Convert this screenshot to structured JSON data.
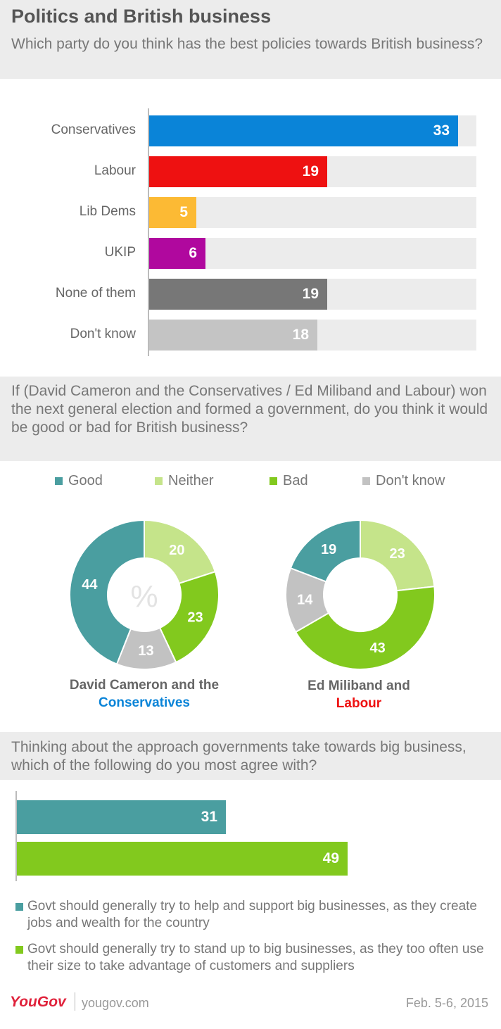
{
  "title": "Politics and British business",
  "q1": "Which party do you think has the best policies towards British business?",
  "q2": "If (David Cameron and the Conservatives / Ed Miliband and Labour) won the next general election and formed a government, do you think it would be good or bad for British business?",
  "q3": "Thinking about the approach governments take towards big business, which of the following do you most agree with?",
  "colors": {
    "conservatives": "#0a84d8",
    "labour": "#ee1111",
    "libdems": "#fcba34",
    "ukip": "#b0089e",
    "none": "#777777",
    "dontknow_bar": "#c4c4c4",
    "good": "#4a9ea0",
    "neither": "#c5e48a",
    "bad": "#82c91e",
    "dontknow": "#c2c2c2"
  },
  "legend": [
    "Good",
    "Neither",
    "Bad",
    "Don't know"
  ],
  "donut_captions": {
    "cameron_line1": "David Cameron and the",
    "cameron_line2": "Conservatives",
    "miliband_line1": "Ed Miliband and",
    "miliband_line2": "Labour"
  },
  "percent_sign": "%",
  "footer_legend": [
    "Govt should generally try to help and support big businesses, as they create jobs and wealth for the country",
    "Govt should generally try to stand up to big businesses, as they too often use their size to take advantage of customers and suppliers"
  ],
  "brand": "YouGov",
  "site": "yougov.com",
  "date": "Feb. 5-6, 2015",
  "chart_data": [
    {
      "type": "bar",
      "orientation": "horizontal",
      "categories": [
        "Conservatives",
        "Labour",
        "Lib Dems",
        "UKIP",
        "None of them",
        "Don't know"
      ],
      "values": [
        33,
        19,
        5,
        6,
        19,
        18
      ],
      "xlim": [
        0,
        33
      ]
    },
    {
      "type": "pie",
      "variant": "donut",
      "caption": "David Cameron and the Conservatives",
      "labels": [
        "Good",
        "Neither",
        "Bad",
        "Don't know"
      ],
      "values": [
        44,
        20,
        23,
        13
      ],
      "center_label": "%"
    },
    {
      "type": "pie",
      "variant": "donut",
      "caption": "Ed Miliband and Labour",
      "labels": [
        "Good",
        "Neither",
        "Bad",
        "Don't know"
      ],
      "values": [
        19,
        23,
        43,
        14
      ]
    },
    {
      "type": "bar",
      "orientation": "horizontal",
      "categories": [
        "Govt should generally try to help and support big businesses, as they create jobs and wealth for the country",
        "Govt should generally try to stand up to big businesses, as they too often use their size to take advantage of customers and suppliers"
      ],
      "values": [
        31,
        49
      ]
    }
  ]
}
